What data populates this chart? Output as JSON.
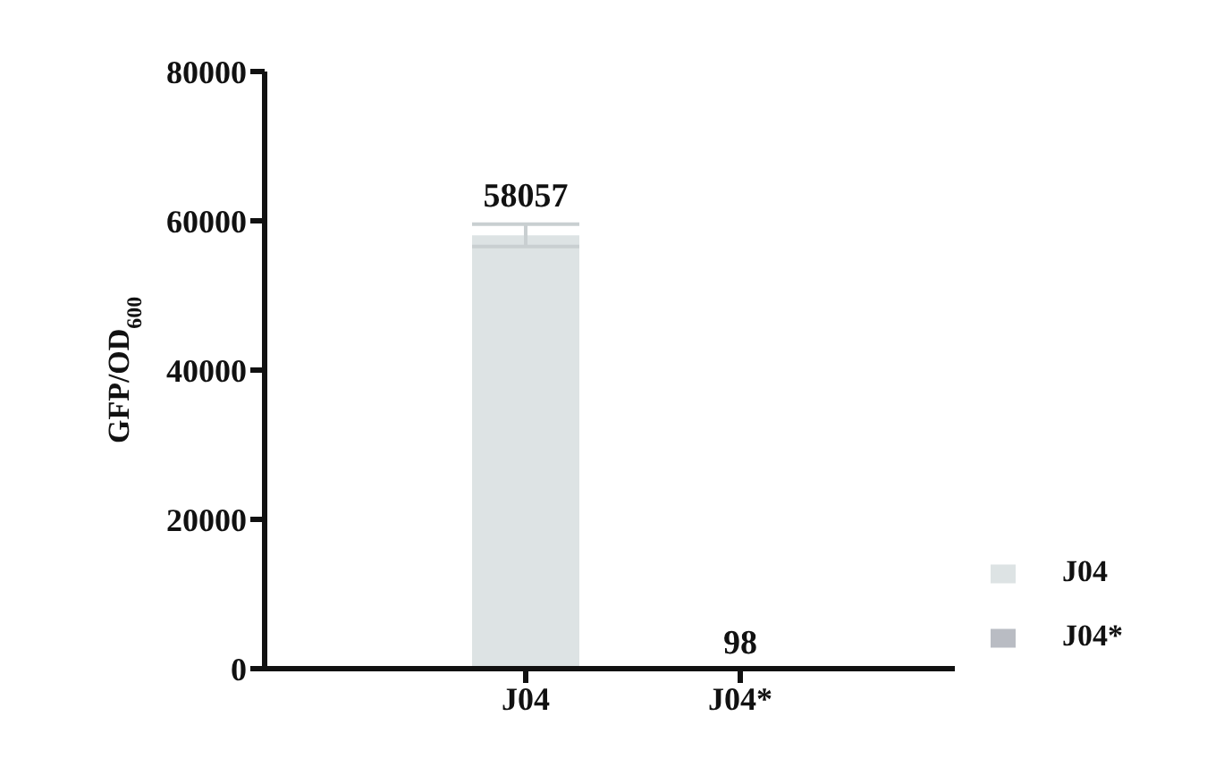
{
  "chart_data": {
    "type": "bar",
    "ylabel": "GFP/OD$_{600}$",
    "categories": [
      "J04",
      "J04*"
    ],
    "series": [
      {
        "name": "J04",
        "color": "#dde3e4",
        "values": [
          58057,
          null
        ],
        "errors": [
          1500,
          null
        ]
      },
      {
        "name": "J04*",
        "color": "#b9bcc3",
        "values": [
          null,
          98
        ],
        "errors": [
          null,
          null
        ]
      }
    ],
    "ylim": [
      0,
      80000
    ],
    "yticks": [
      0,
      20000,
      40000,
      60000,
      80000
    ],
    "data_labels": true,
    "grid": false,
    "legend": "right"
  }
}
